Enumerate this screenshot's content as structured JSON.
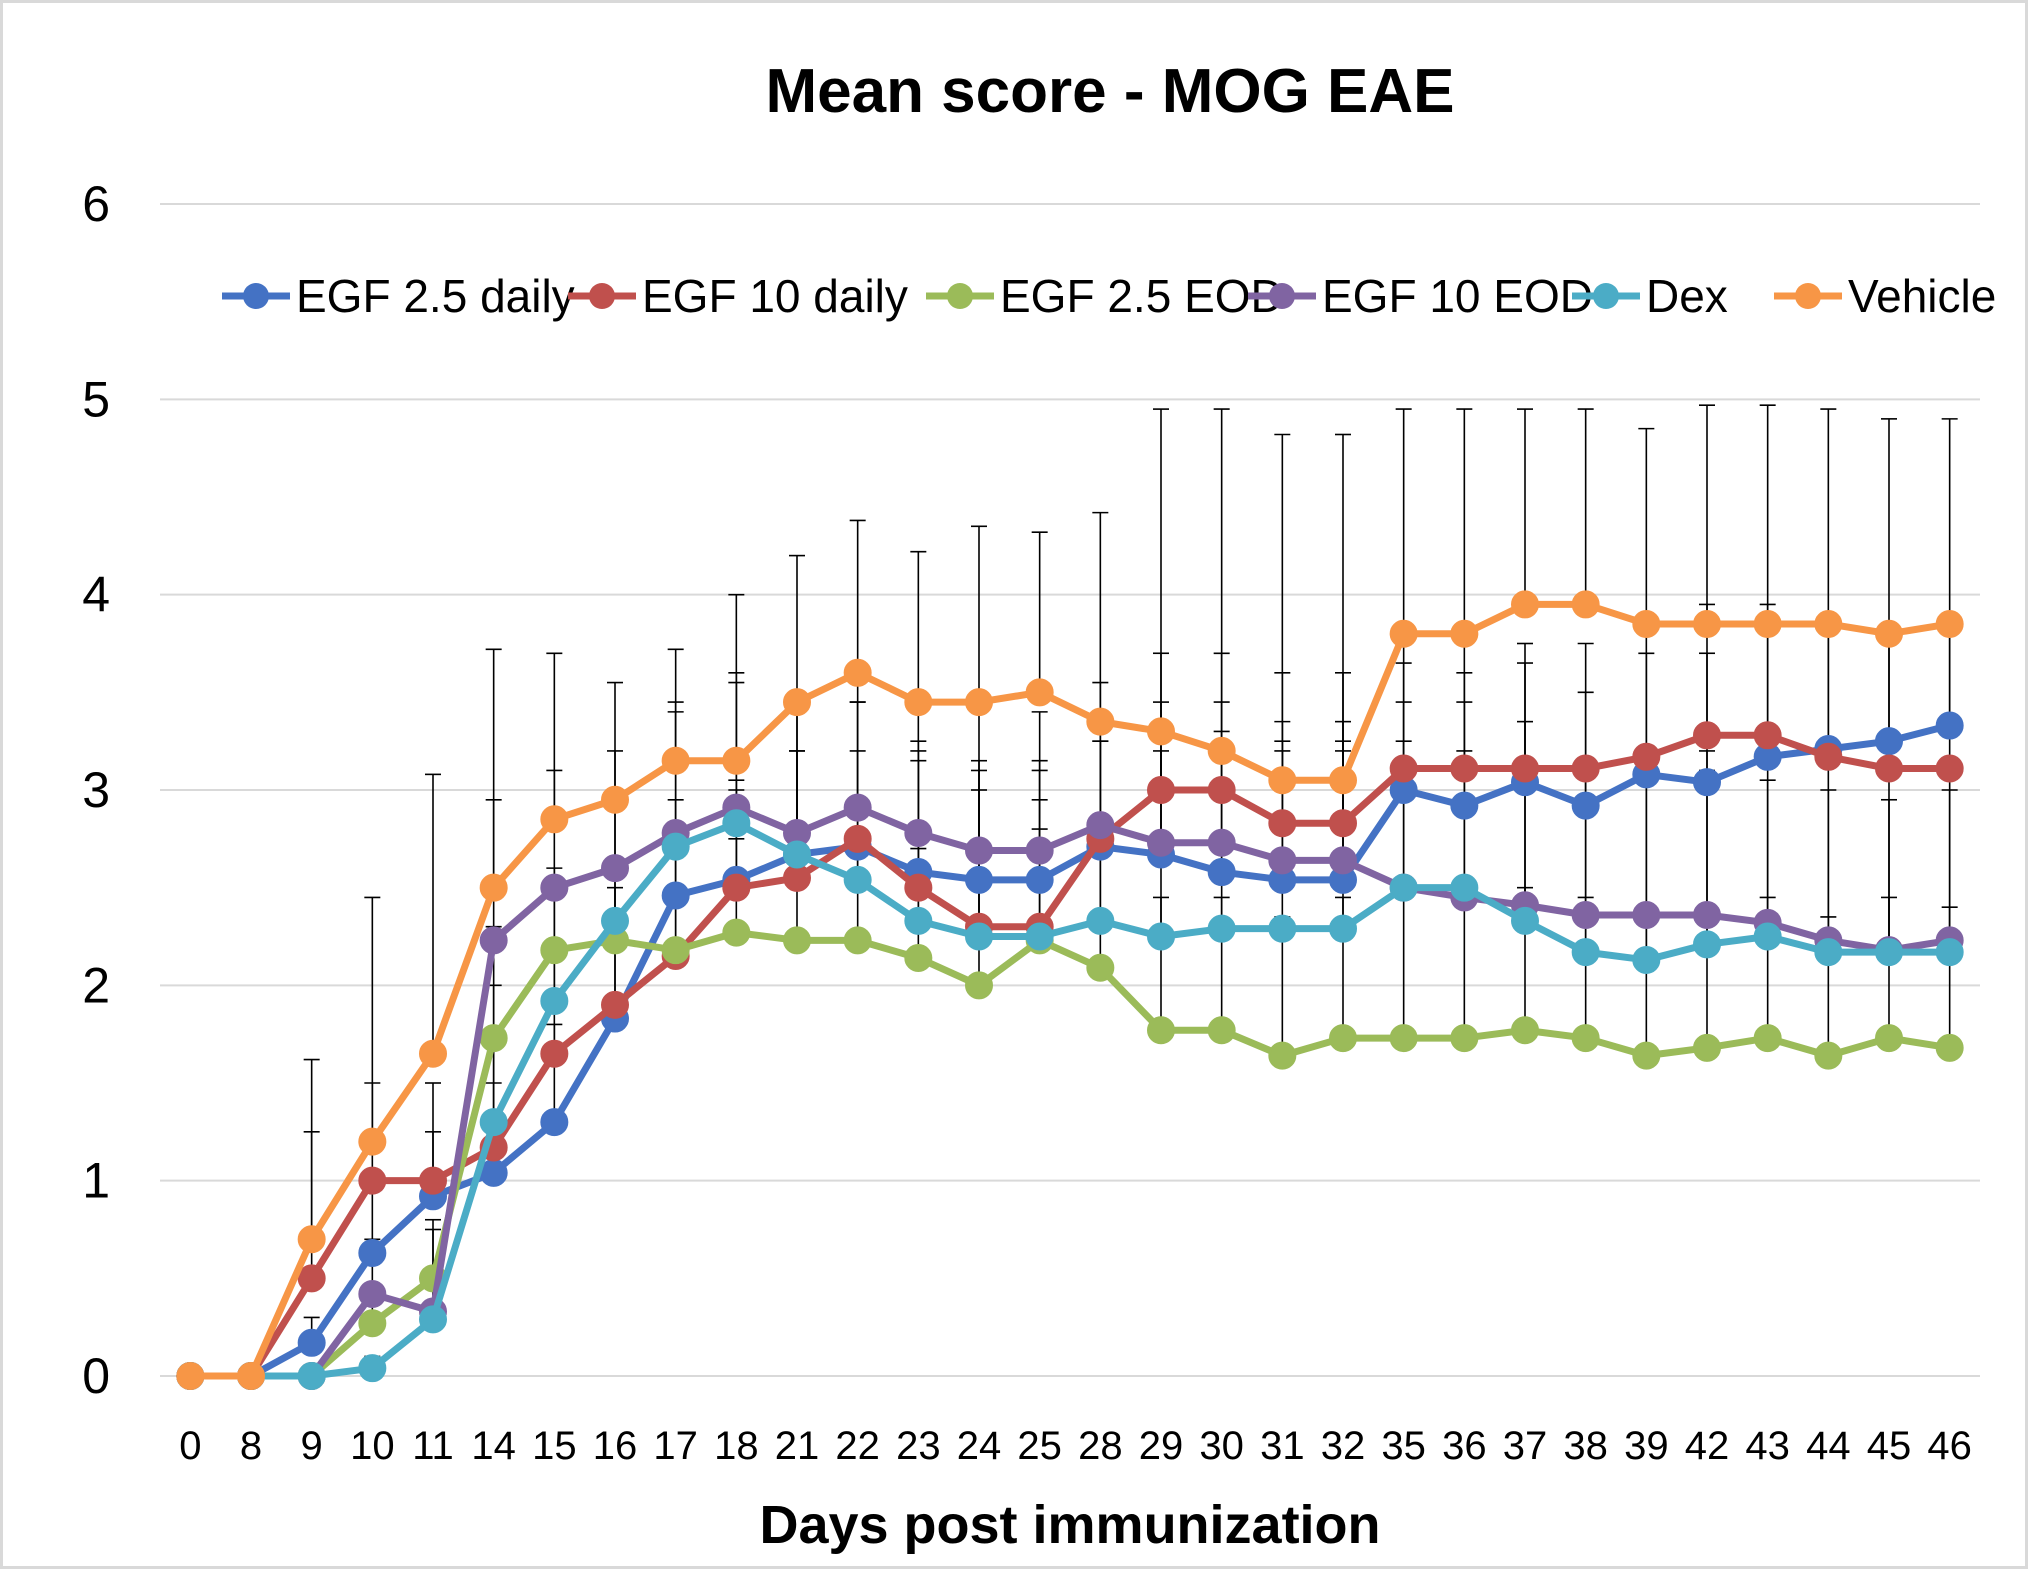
{
  "chart_data": {
    "type": "line",
    "title": "Mean score - MOG EAE",
    "xlabel": "Days post immunization",
    "ylabel": "",
    "ylim": [
      0,
      6
    ],
    "yticks": [
      "0",
      "1",
      "2",
      "3",
      "4",
      "5",
      "6"
    ],
    "grid": true,
    "legend_position": "top",
    "categories": [
      "0",
      "8",
      "9",
      "10",
      "11",
      "14",
      "15",
      "16",
      "17",
      "18",
      "21",
      "22",
      "23",
      "24",
      "25",
      "28",
      "29",
      "30",
      "31",
      "32",
      "35",
      "36",
      "37",
      "38",
      "39",
      "42",
      "43",
      "44",
      "45",
      "46"
    ],
    "series": [
      {
        "name": "EGF 2.5 daily",
        "color": "#4472C4",
        "values": [
          0,
          0,
          0.17,
          0.63,
          0.92,
          1.04,
          1.3,
          1.83,
          2.46,
          2.54,
          2.67,
          2.71,
          2.58,
          2.54,
          2.54,
          2.71,
          2.67,
          2.58,
          2.54,
          2.54,
          3.0,
          2.92,
          3.04,
          2.92,
          3.08,
          3.04,
          3.17,
          3.21,
          3.25,
          3.33
        ]
      },
      {
        "name": "EGF 10 daily",
        "color": "#C0504D",
        "values": [
          0,
          0,
          0.5,
          1.0,
          1.0,
          1.17,
          1.65,
          1.9,
          2.15,
          2.5,
          2.55,
          2.75,
          2.5,
          2.3,
          2.3,
          2.75,
          3.0,
          3.0,
          2.83,
          2.83,
          3.11,
          3.11,
          3.11,
          3.11,
          3.17,
          3.28,
          3.28,
          3.17,
          3.11,
          3.11
        ]
      },
      {
        "name": "EGF 2.5 EOD",
        "color": "#9BBB59",
        "values": [
          0,
          0,
          0,
          0.27,
          0.5,
          1.73,
          2.18,
          2.23,
          2.18,
          2.27,
          2.23,
          2.23,
          2.14,
          2.0,
          2.23,
          2.09,
          1.77,
          1.77,
          1.64,
          1.73,
          1.73,
          1.73,
          1.77,
          1.73,
          1.64,
          1.68,
          1.73,
          1.64,
          1.73,
          1.68
        ]
      },
      {
        "name": "EGF 10 EOD",
        "color": "#8064A2",
        "values": [
          0,
          0,
          0,
          0.42,
          0.33,
          2.23,
          2.5,
          2.6,
          2.78,
          2.91,
          2.78,
          2.91,
          2.78,
          2.69,
          2.69,
          2.82,
          2.73,
          2.73,
          2.64,
          2.64,
          2.5,
          2.45,
          2.41,
          2.36,
          2.36,
          2.36,
          2.32,
          2.23,
          2.18,
          2.23
        ]
      },
      {
        "name": "Dex",
        "color": "#4BACC6",
        "values": [
          0,
          0,
          0,
          0.04,
          0.29,
          1.3,
          1.92,
          2.33,
          2.71,
          2.83,
          2.67,
          2.54,
          2.33,
          2.25,
          2.25,
          2.33,
          2.25,
          2.29,
          2.29,
          2.29,
          2.5,
          2.5,
          2.33,
          2.17,
          2.13,
          2.21,
          2.25,
          2.17,
          2.17,
          2.17
        ]
      },
      {
        "name": "Vehicle",
        "color": "#F79646",
        "values": [
          0,
          0,
          0.7,
          1.2,
          1.65,
          2.5,
          2.85,
          2.95,
          3.15,
          3.15,
          3.45,
          3.6,
          3.45,
          3.45,
          3.5,
          3.35,
          3.3,
          3.2,
          3.05,
          3.05,
          3.8,
          3.8,
          3.95,
          3.95,
          3.85,
          3.85,
          3.85,
          3.85,
          3.8,
          3.85
        ]
      }
    ],
    "error_bar_upper": [
      [
        0,
        0,
        0.3,
        0.7,
        1.25,
        1.5,
        1.8,
        2.35,
        2.95,
        3.0,
        3.2,
        3.2,
        3.15,
        3.1,
        3.1,
        3.25,
        3.35,
        3.3,
        3.2,
        3.2,
        3.65,
        3.6,
        3.65,
        3.5,
        3.7,
        3.7,
        3.8,
        3.8,
        3.85,
        3.85
      ],
      [
        0,
        0,
        1.25,
        1.5,
        1.5,
        1.75,
        2.2,
        2.5,
        2.7,
        3.05,
        3.2,
        3.45,
        3.2,
        3.0,
        2.95,
        3.4,
        3.7,
        3.7,
        3.6,
        3.6,
        3.75,
        3.75,
        3.75,
        3.75,
        3.8,
        3.95,
        3.95,
        3.85,
        3.8,
        3.8
      ],
      [
        0,
        0,
        0,
        0.45,
        0.75,
        2.3,
        2.6,
        2.65,
        2.7,
        2.75,
        2.75,
        2.8,
        2.7,
        2.55,
        2.8,
        2.7,
        2.45,
        2.45,
        2.35,
        2.45,
        2.45,
        2.45,
        2.5,
        2.45,
        2.35,
        2.4,
        2.45,
        2.35,
        2.45,
        2.4
      ],
      [
        0,
        0,
        0,
        0.95,
        0.8,
        2.95,
        3.1,
        3.2,
        3.4,
        3.55,
        3.45,
        3.6,
        3.5,
        3.4,
        3.4,
        3.55,
        3.45,
        3.45,
        3.35,
        3.35,
        3.25,
        3.2,
        3.15,
        3.1,
        3.1,
        3.1,
        3.05,
        3.0,
        2.95,
        3.0
      ],
      [
        0,
        0,
        0,
        0.1,
        0.55,
        2.0,
        2.55,
        2.95,
        3.45,
        3.6,
        3.5,
        3.45,
        3.25,
        3.15,
        3.15,
        3.25,
        3.2,
        3.25,
        3.25,
        3.25,
        3.45,
        3.45,
        3.35,
        3.15,
        3.1,
        3.2,
        3.25,
        3.15,
        3.15,
        3.15
      ],
      [
        0,
        0,
        1.62,
        2.45,
        3.08,
        3.72,
        3.7,
        3.55,
        3.72,
        4.0,
        4.2,
        4.38,
        4.22,
        4.35,
        4.32,
        4.42,
        4.95,
        4.95,
        4.82,
        4.82,
        4.95,
        4.95,
        4.95,
        4.95,
        4.85,
        4.97,
        4.97,
        4.95,
        4.9,
        4.9
      ]
    ]
  }
}
